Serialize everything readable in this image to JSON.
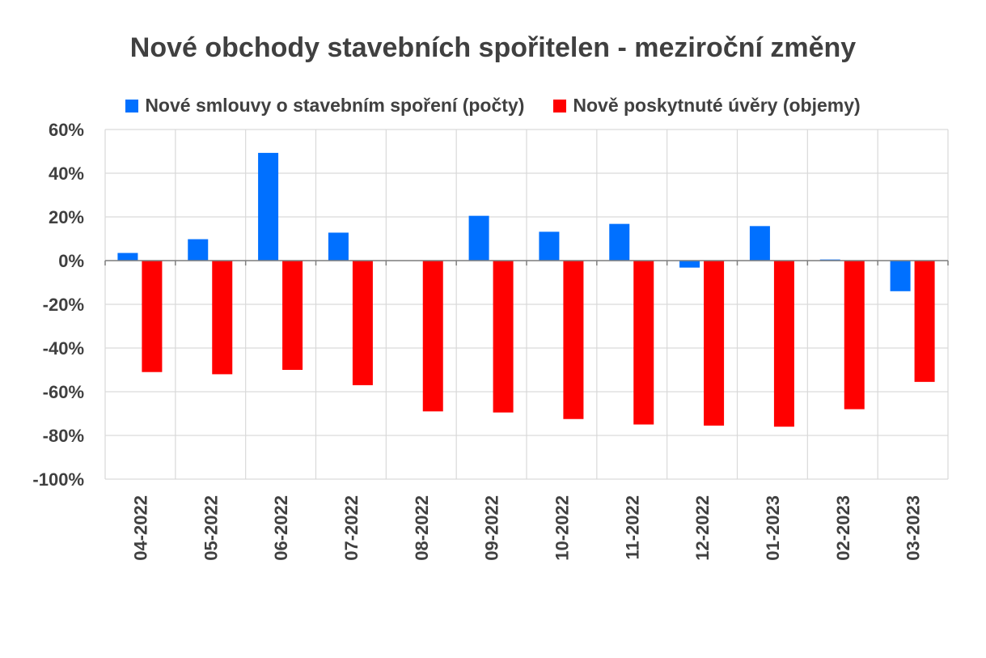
{
  "chart_data": {
    "type": "bar",
    "title": "Nové obchody stavebních spořitelen - meziroční změny",
    "categories": [
      "04-2022",
      "05-2022",
      "06-2022",
      "07-2022",
      "08-2022",
      "09-2022",
      "10-2022",
      "11-2022",
      "12-2022",
      "01-2023",
      "02-2023",
      "03-2023"
    ],
    "series": [
      {
        "name": "Nové smlouvy o stavebním spoření (počty)",
        "color": "#0070FF",
        "values": [
          3.5,
          9.8,
          49.3,
          12.8,
          0,
          20.5,
          13.2,
          16.8,
          -3.2,
          15.8,
          0.5,
          -14.0
        ]
      },
      {
        "name": "Nově poskytnuté úvěry (objemy)",
        "color": "#FF0000",
        "values": [
          -51.0,
          -52.0,
          -50.0,
          -57.0,
          -69.0,
          -69.5,
          -72.5,
          -75.0,
          -75.5,
          -76.0,
          -68.0,
          -55.5
        ]
      }
    ],
    "ylim": [
      -100,
      60
    ],
    "yticks": [
      60,
      40,
      20,
      0,
      -20,
      -40,
      -60,
      -80,
      -100
    ],
    "ytick_labels": [
      "60%",
      "40%",
      "20%",
      "0%",
      "-20%",
      "-40%",
      "-60%",
      "-80%",
      "-100%"
    ],
    "grid": true,
    "legend_position": "top"
  }
}
